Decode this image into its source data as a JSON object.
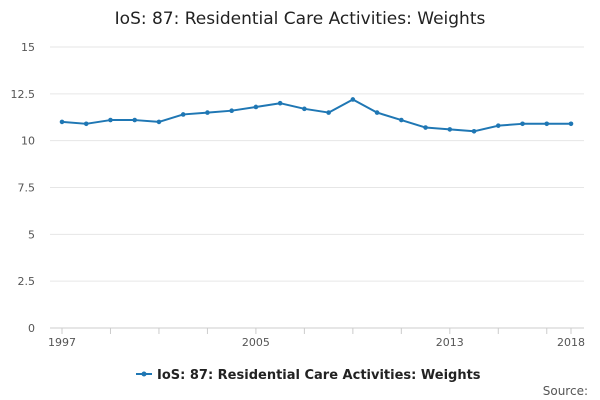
{
  "chart_data": {
    "type": "line",
    "title": "IoS: 87: Residential Care Activities: Weights",
    "xlabel": "",
    "ylabel": "",
    "x": [
      1997,
      1998,
      1999,
      2000,
      2001,
      2002,
      2003,
      2004,
      2005,
      2006,
      2007,
      2008,
      2009,
      2010,
      2011,
      2012,
      2013,
      2014,
      2015,
      2016,
      2017,
      2018
    ],
    "x_tick_labels": [
      "1997",
      "2005",
      "2013",
      "2018"
    ],
    "x_tick_values": [
      1997,
      2005,
      2013,
      2018
    ],
    "y_tick_labels": [
      "0",
      "2.5",
      "5",
      "7.5",
      "10",
      "12.5",
      "15"
    ],
    "ylim": [
      0,
      15
    ],
    "grid": true,
    "legend_position": "bottom",
    "series": [
      {
        "name": "IoS: 87: Residential Care Activities: Weights",
        "color": "#1f77b4",
        "values": [
          11.0,
          10.9,
          11.1,
          11.1,
          11.0,
          11.4,
          11.5,
          11.6,
          11.8,
          12.0,
          11.7,
          11.5,
          12.2,
          11.5,
          11.1,
          10.7,
          10.6,
          10.5,
          10.8,
          10.9,
          10.9,
          10.9
        ]
      }
    ]
  },
  "footer": {
    "source_label": "Source:"
  }
}
